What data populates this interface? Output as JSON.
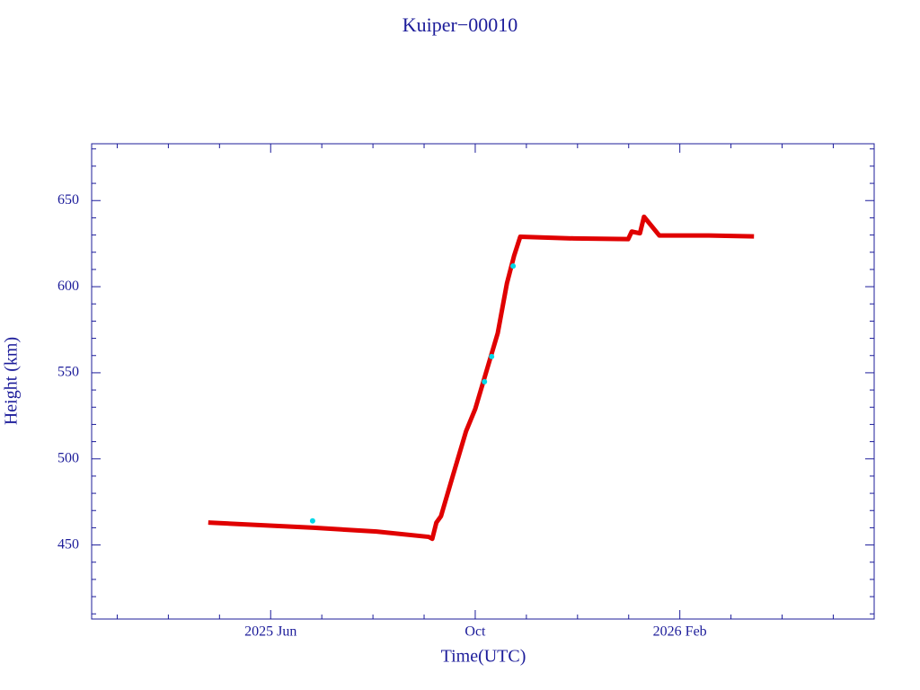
{
  "chart_data": {
    "type": "scatter",
    "title": "Kuiper−00010",
    "xlabel": "Time(UTC)",
    "ylabel": "Height (km)",
    "xlim": [
      1.5,
      16.8
    ],
    "ylim": [
      407,
      683
    ],
    "xticks": [
      {
        "value": 5,
        "label": "2025 Jun"
      },
      {
        "value": 9,
        "label": "Oct"
      },
      {
        "value": 13,
        "label": "2026 Feb"
      }
    ],
    "yticks": [
      450,
      500,
      550,
      600,
      650
    ],
    "xminorticks": [
      2,
      3,
      4,
      6,
      7,
      8,
      10,
      11,
      12,
      14,
      15,
      16
    ],
    "yminorticks": [
      410,
      420,
      430,
      440,
      460,
      470,
      480,
      490,
      510,
      520,
      530,
      540,
      560,
      570,
      580,
      590,
      610,
      620,
      630,
      640,
      660,
      670,
      680
    ],
    "axis_color": "#1c1c9a",
    "series": [
      {
        "color": "#e00000",
        "mode": "lines",
        "x": [
          3.78,
          5.84,
          7.07,
          8.09,
          8.16,
          8.24,
          8.33,
          8.56,
          8.82,
          9.0,
          9.26,
          9.44,
          9.62,
          9.76,
          9.88,
          10.93,
          11.99,
          12.06,
          12.22,
          12.3,
          12.6,
          13.57,
          14.45
        ],
        "values": [
          463,
          460,
          457.8,
          454.7,
          453.6,
          463,
          466.7,
          490,
          516,
          529,
          555,
          573,
          602,
          618,
          629,
          628,
          627.6,
          632,
          631,
          640.6,
          629.7,
          629.7,
          629.2
        ]
      },
      {
        "color": "#00d8e8",
        "mode": "markers",
        "x": [
          5.82,
          9.18,
          9.32,
          9.74
        ],
        "values": [
          464,
          544.8,
          559.4,
          612
        ]
      }
    ]
  }
}
